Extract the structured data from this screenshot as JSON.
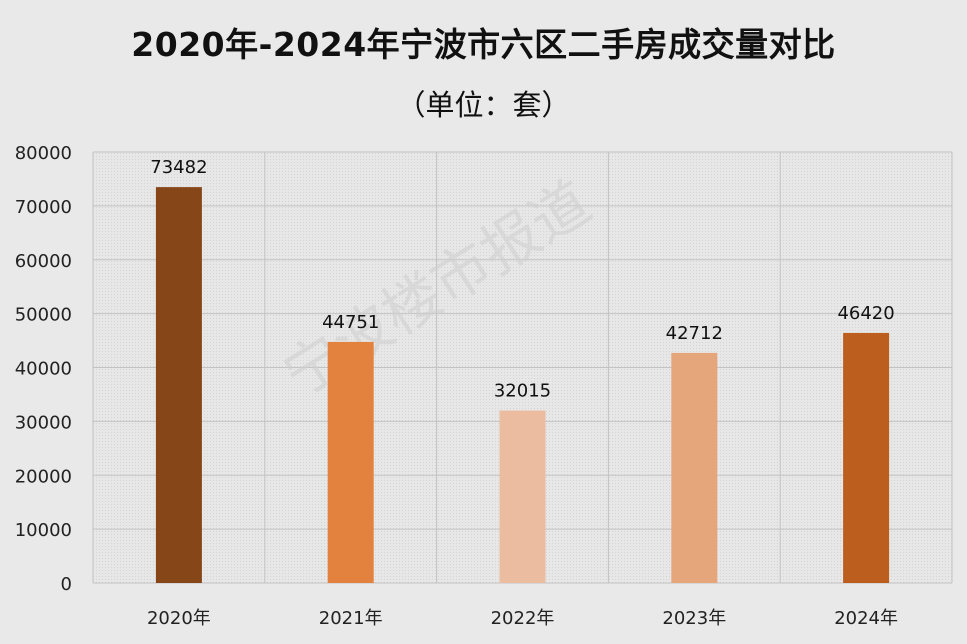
{
  "chart_data": {
    "type": "bar",
    "title": "2020年-2024年宁波市六区二手房成交量对比",
    "subtitle": "（单位：套）",
    "categories": [
      "2020年",
      "2021年",
      "2022年",
      "2023年",
      "2024年"
    ],
    "values": [
      73482,
      44751,
      32015,
      42712,
      46420
    ],
    "bar_colors": [
      "#874618",
      "#e3823f",
      "#ecbca0",
      "#e6a67c",
      "#bc5f1e"
    ],
    "ylim": [
      0,
      80000
    ],
    "yticks": [
      0,
      10000,
      20000,
      30000,
      40000,
      50000,
      60000,
      70000,
      80000
    ],
    "grid": true,
    "legend": "none",
    "watermark": "宁波楼市报道"
  }
}
